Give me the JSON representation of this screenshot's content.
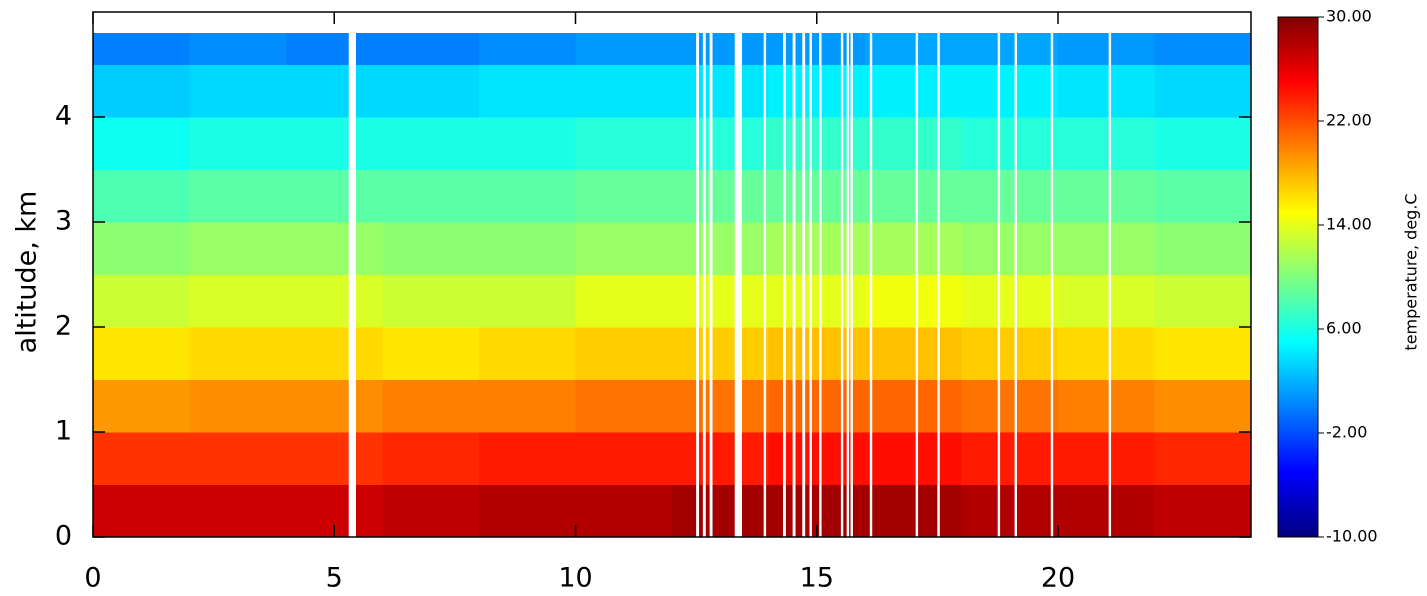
{
  "chart_data": {
    "type": "heatmap",
    "y_label": "altitude, km",
    "colorbar_label": "temperature, deg.C",
    "x": [
      0,
      2,
      4,
      6,
      8,
      10,
      12,
      14,
      16,
      18,
      20,
      22,
      24
    ],
    "y": [
      0,
      0.5,
      1,
      1.5,
      2,
      2.5,
      3,
      3.5,
      4,
      4.5,
      4.8
    ],
    "z": [
      [
        27,
        23,
        19,
        16,
        13,
        10.5,
        8,
        5.5,
        3,
        0
      ],
      [
        27,
        23,
        19.5,
        16.5,
        13.5,
        11,
        8.5,
        6,
        3.5,
        0.5
      ],
      [
        27,
        23,
        19.5,
        16.5,
        13.5,
        11,
        8.5,
        6,
        3.5,
        0
      ],
      [
        27.5,
        23.5,
        20,
        16,
        13,
        10.5,
        8.5,
        6,
        3.5,
        0
      ],
      [
        28,
        24,
        20,
        16.5,
        13,
        10.5,
        8.5,
        6,
        4,
        0.5
      ],
      [
        28,
        24,
        20.5,
        17,
        14,
        11,
        9,
        6.5,
        4,
        1
      ],
      [
        28.5,
        24,
        20.5,
        17,
        14,
        11,
        9,
        6.5,
        4,
        1
      ],
      [
        28.5,
        24.5,
        21,
        17.5,
        14,
        11.5,
        9,
        7,
        4.5,
        1
      ],
      [
        28.5,
        24.5,
        21,
        17.5,
        14.5,
        11.5,
        9,
        7,
        4.5,
        1.5
      ],
      [
        28,
        24,
        20.5,
        17,
        14,
        11,
        9,
        6.5,
        4.5,
        1.5
      ],
      [
        28,
        24,
        20,
        16.5,
        13.5,
        11,
        9,
        6.5,
        4,
        1
      ],
      [
        27.5,
        23.5,
        19.5,
        16,
        13,
        10.5,
        8.5,
        6,
        3.5,
        0.5
      ]
    ],
    "missing_data": [
      [
        5.3,
        5.45
      ],
      [
        12.5,
        12.56
      ],
      [
        12.64,
        12.7
      ],
      [
        12.78,
        12.84
      ],
      [
        13.3,
        13.45
      ],
      [
        13.9,
        13.95
      ],
      [
        14.3,
        14.36
      ],
      [
        14.5,
        14.56
      ],
      [
        14.7,
        14.76
      ],
      [
        14.85,
        14.9
      ],
      [
        15.05,
        15.1
      ],
      [
        15.5,
        15.55
      ],
      [
        15.62,
        15.67
      ],
      [
        15.7,
        15.75
      ],
      [
        16.1,
        16.15
      ],
      [
        17.05,
        17.1
      ],
      [
        17.5,
        17.55
      ],
      [
        18.75,
        18.8
      ],
      [
        19.1,
        19.15
      ],
      [
        19.85,
        19.9
      ],
      [
        21.05,
        21.1
      ]
    ],
    "xlim": [
      0,
      24
    ],
    "xticks": [
      0,
      5,
      10,
      15,
      20
    ],
    "ylim": [
      0,
      5
    ],
    "yticks": [
      0,
      1,
      2,
      3,
      4
    ],
    "clim": [
      -10,
      30
    ],
    "cticks": [
      {
        "value": -10,
        "label": "-10.00"
      },
      {
        "value": -2,
        "label": "-2.00"
      },
      {
        "value": 6,
        "label": "6.00"
      },
      {
        "value": 14,
        "label": "14.00"
      },
      {
        "value": 22,
        "label": "22.00"
      },
      {
        "value": 30,
        "label": "30.00"
      }
    ],
    "colormap": [
      "#00007f",
      "#0000ff",
      "#0080ff",
      "#00ffff",
      "#80ff80",
      "#ffff00",
      "#ff8000",
      "#ff0000",
      "#7f0000"
    ]
  }
}
